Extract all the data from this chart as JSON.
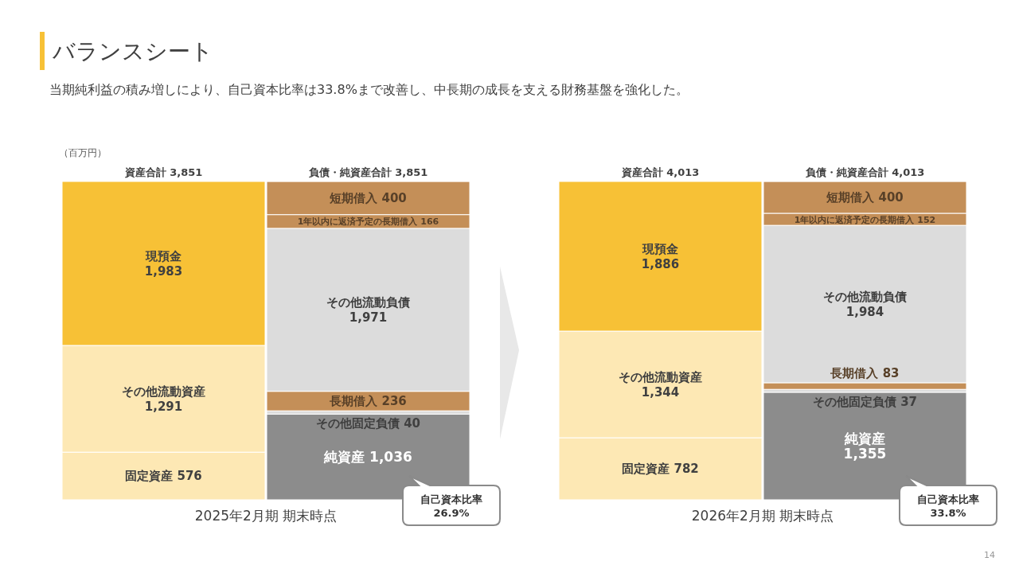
{
  "chart_data": [
    {
      "type": "bar",
      "stacked": true,
      "title": "バランスシート",
      "subtitle": "当期純利益の積み増しにより、自己資本比率は33.8%まで改善し、中長期の成長を支える財務基盤を強化した。",
      "ylabel": "（百万円）",
      "xlabel": "2025年2月期 期末時点",
      "categories": [
        "資産合計 3,851",
        "負債・純資産合計 3,851"
      ],
      "series": [
        {
          "name": "固定資産",
          "color": "#fde8b4",
          "values": [
            576,
            null
          ],
          "value_labels": [
            "576",
            null
          ]
        },
        {
          "name": "その他流動資産",
          "color": "#fde8b4",
          "values": [
            1291,
            null
          ],
          "value_labels": [
            "1,291",
            null
          ]
        },
        {
          "name": "現預金",
          "color": "#f7c136",
          "values": [
            1983,
            null
          ],
          "value_labels": [
            "1,983",
            null
          ]
        },
        {
          "name": "純資産",
          "color": "#8c8c8c",
          "values": [
            null,
            1036
          ],
          "value_labels": [
            null,
            "1,036"
          ]
        },
        {
          "name": "その他固定負債",
          "color": "#dcdcdc",
          "values": [
            null,
            40
          ],
          "value_labels": [
            null,
            "40"
          ]
        },
        {
          "name": "長期借入",
          "color": "#c48f58",
          "values": [
            null,
            236
          ],
          "value_labels": [
            null,
            "236"
          ]
        },
        {
          "name": "その他流動負債",
          "color": "#dcdcdc",
          "values": [
            null,
            1971
          ],
          "value_labels": [
            null,
            "1,971"
          ]
        },
        {
          "name": "1年以内に返済予定の長期借入",
          "color": "#c48f58",
          "values": [
            null,
            166
          ],
          "value_labels": [
            null,
            "166"
          ]
        },
        {
          "name": "短期借入",
          "color": "#c48f58",
          "values": [
            null,
            400
          ],
          "value_labels": [
            null,
            "400"
          ]
        }
      ],
      "annotations": [
        "自己資本比率\n26.9%"
      ]
    },
    {
      "type": "bar",
      "stacked": true,
      "xlabel": "2026年2月期 期末時点",
      "categories": [
        "資産合計 4,013",
        "負債・純資産合計 4,013"
      ],
      "series": [
        {
          "name": "固定資産",
          "color": "#fde8b4",
          "values": [
            782,
            null
          ],
          "value_labels": [
            "782",
            null
          ]
        },
        {
          "name": "その他流動資産",
          "color": "#fde8b4",
          "values": [
            1344,
            null
          ],
          "value_labels": [
            "1,344",
            null
          ]
        },
        {
          "name": "現預金",
          "color": "#f7c136",
          "values": [
            1886,
            null
          ],
          "value_labels": [
            "1,886",
            null
          ]
        },
        {
          "name": "純資産",
          "color": "#8c8c8c",
          "values": [
            null,
            1355
          ],
          "value_labels": [
            null,
            "1,355"
          ]
        },
        {
          "name": "その他固定負債",
          "color": "#dcdcdc",
          "values": [
            null,
            37
          ],
          "value_labels": [
            null,
            "37"
          ]
        },
        {
          "name": "長期借入",
          "color": "#c48f58",
          "values": [
            null,
            83
          ],
          "value_labels": [
            null,
            "83"
          ]
        },
        {
          "name": "その他流動負債",
          "color": "#dcdcdc",
          "values": [
            null,
            1984
          ],
          "value_labels": [
            null,
            "1,984"
          ]
        },
        {
          "name": "1年以内に返済予定の長期借入",
          "color": "#c48f58",
          "values": [
            null,
            152
          ],
          "value_labels": [
            null,
            "152"
          ]
        },
        {
          "name": "短期借入",
          "color": "#c48f58",
          "values": [
            null,
            400
          ],
          "value_labels": [
            null,
            "400"
          ]
        }
      ],
      "annotations": [
        "自己資本比率\n33.8%",
        "14"
      ]
    }
  ]
}
